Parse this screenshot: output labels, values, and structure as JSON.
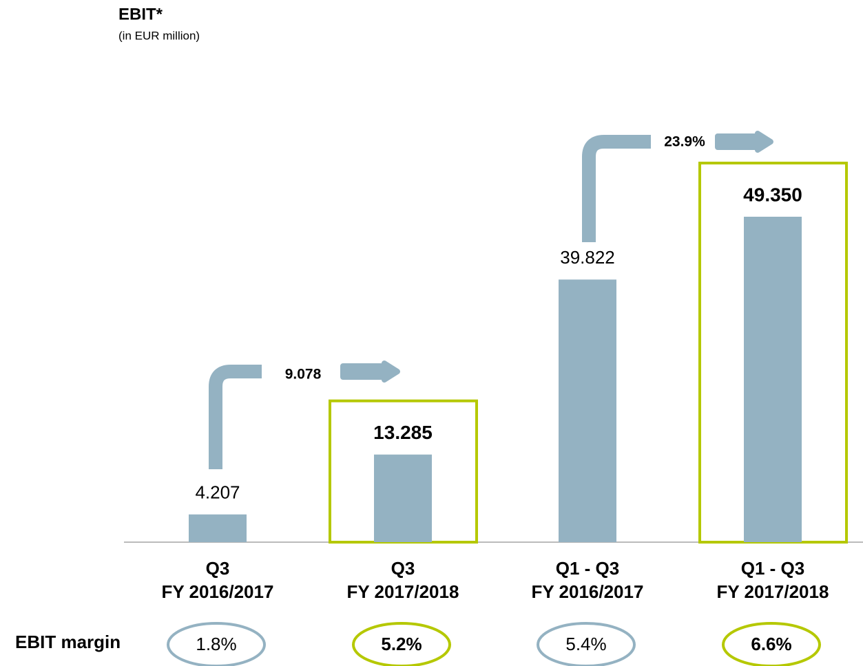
{
  "chart_data": {
    "type": "bar",
    "title": "EBIT*",
    "subtitle": "(in EUR million)",
    "categories": [
      [
        "Q3",
        "FY 2016/2017"
      ],
      [
        "Q3",
        "FY 2017/2018"
      ],
      [
        "Q1 - Q3",
        "FY 2016/2017"
      ],
      [
        "Q1 - Q3",
        "FY 2017/2018"
      ]
    ],
    "values": [
      4.207,
      13.285,
      39.822,
      49.35
    ],
    "value_labels": [
      "4.207",
      "13.285",
      "39.822",
      "49.350"
    ],
    "color": "#94b2c2",
    "highlighted": [
      false,
      true,
      false,
      true
    ],
    "highlight_color": "#b5c800",
    "annotations": [
      {
        "text": "9.078"
      },
      {
        "text": "23.9%"
      }
    ],
    "margins": {
      "label": "EBIT margin",
      "values": [
        1.8,
        5.2,
        5.4,
        6.6
      ],
      "value_labels": [
        "1.8%",
        "5.2%",
        "5.4%",
        "6.6%"
      ]
    }
  }
}
